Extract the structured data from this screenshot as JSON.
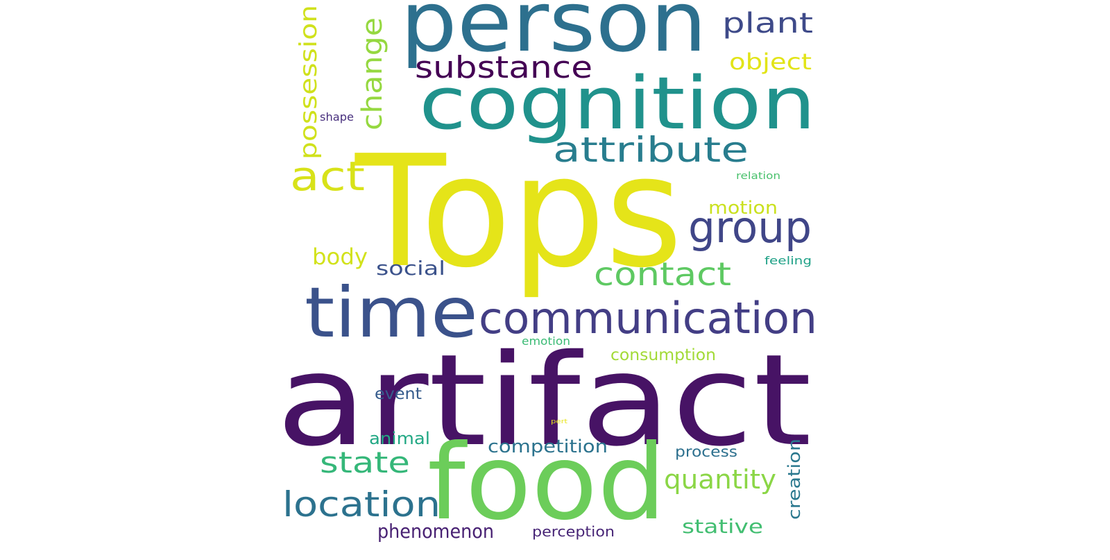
{
  "words": [
    {
      "text": "Tops",
      "color": "#e5e419"
    },
    {
      "text": "artifact",
      "color": "#471365"
    },
    {
      "text": "food",
      "color": "#6ccd5a"
    },
    {
      "text": "person",
      "color": "#2d708e"
    },
    {
      "text": "cognition",
      "color": "#20928c"
    },
    {
      "text": "time",
      "color": "#3b528b"
    },
    {
      "text": "communication",
      "color": "#433e85"
    },
    {
      "text": "attribute",
      "color": "#287d8e"
    },
    {
      "text": "group",
      "color": "#404688"
    },
    {
      "text": "contact",
      "color": "#5ec962"
    },
    {
      "text": "location",
      "color": "#2c728e"
    },
    {
      "text": "substance",
      "color": "#440154"
    },
    {
      "text": "plant",
      "color": "#3e4a89"
    },
    {
      "text": "act",
      "color": "#d8e219"
    },
    {
      "text": "change",
      "color": "#95d840"
    },
    {
      "text": "possession",
      "color": "#d0e11c"
    },
    {
      "text": "state",
      "color": "#35b779"
    },
    {
      "text": "quantity",
      "color": "#8bd646"
    },
    {
      "text": "object",
      "color": "#e2e418"
    },
    {
      "text": "motion",
      "color": "#cae11f"
    },
    {
      "text": "body",
      "color": "#d2e21b"
    },
    {
      "text": "social",
      "color": "#3b528b"
    },
    {
      "text": "competition",
      "color": "#2c738e"
    },
    {
      "text": "phenomenon",
      "color": "#482173"
    },
    {
      "text": "stative",
      "color": "#42be71"
    },
    {
      "text": "consumption",
      "color": "#a2da37"
    },
    {
      "text": "creation",
      "color": "#2a788e"
    },
    {
      "text": "animal",
      "color": "#22a884"
    },
    {
      "text": "event",
      "color": "#365c8d"
    },
    {
      "text": "process",
      "color": "#2d708e"
    },
    {
      "text": "perception",
      "color": "#482677"
    },
    {
      "text": "emotion",
      "color": "#3bbb75"
    },
    {
      "text": "feeling",
      "color": "#1fa187"
    },
    {
      "text": "shape",
      "color": "#472f7d"
    },
    {
      "text": "relation",
      "color": "#4ac16d"
    },
    {
      "text": "pert",
      "color": "#e7e419"
    }
  ]
}
